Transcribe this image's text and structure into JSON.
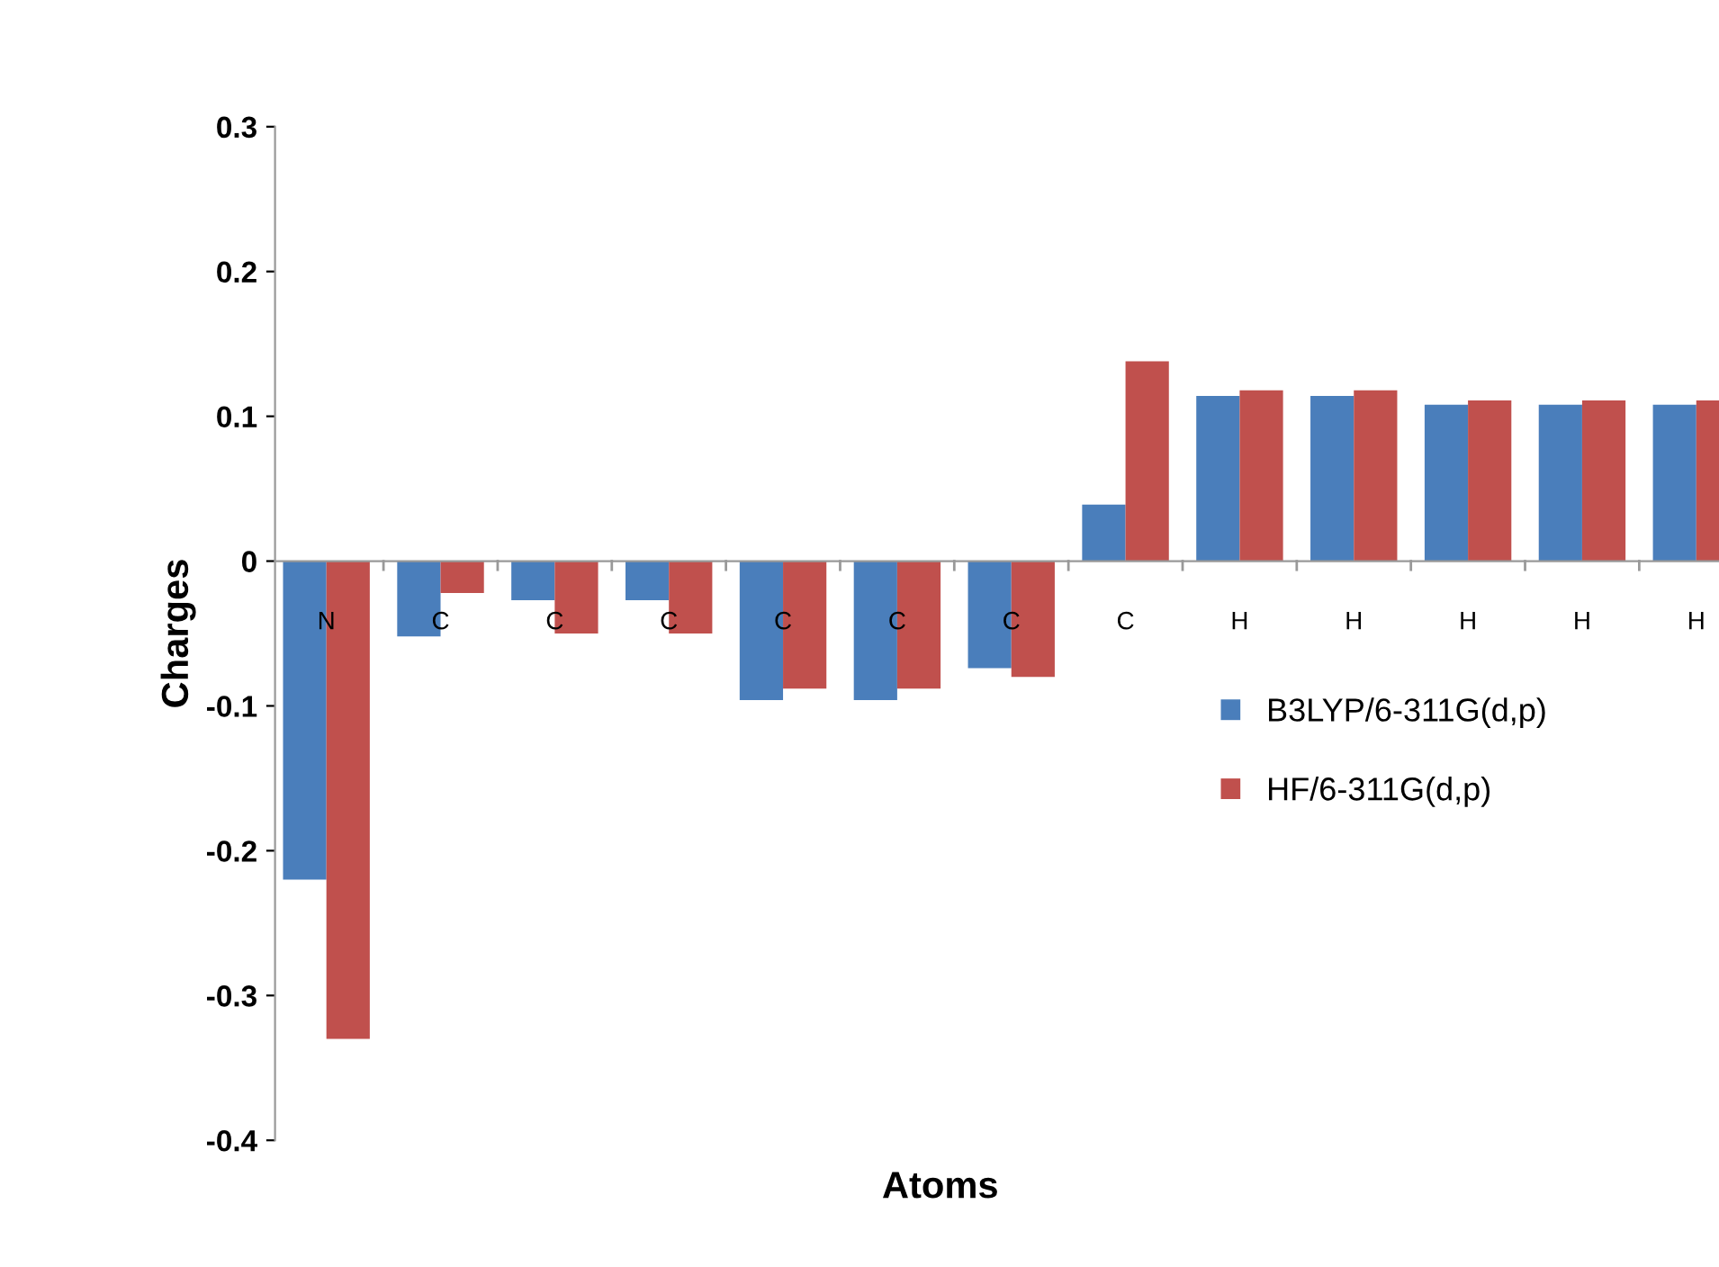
{
  "chart_data": {
    "type": "bar",
    "xlabel": "Atoms",
    "ylabel": "Charges",
    "categories": [
      "N",
      "C",
      "C",
      "C",
      "C",
      "C",
      "C",
      "C",
      "H",
      "H",
      "H",
      "H",
      "H"
    ],
    "series": [
      {
        "name": "B3LYP/6-311G(d,p)",
        "color": "#4a7ebb",
        "values": [
          -0.22,
          -0.052,
          -0.027,
          -0.027,
          -0.096,
          -0.096,
          -0.074,
          0.039,
          0.114,
          0.114,
          0.108,
          0.108,
          0.108
        ]
      },
      {
        "name": "HF/6-311G(d,p)",
        "color": "#c0504d",
        "values": [
          -0.33,
          -0.022,
          -0.05,
          -0.05,
          -0.088,
          -0.088,
          -0.08,
          0.138,
          0.118,
          0.118,
          0.111,
          0.111,
          0.111
        ]
      }
    ],
    "ylim": [
      -0.4,
      0.3
    ],
    "yticks": [
      -0.4,
      -0.3,
      -0.2,
      -0.1,
      0,
      0.1,
      0.2,
      0.3
    ],
    "grid": false,
    "legend": "right"
  }
}
